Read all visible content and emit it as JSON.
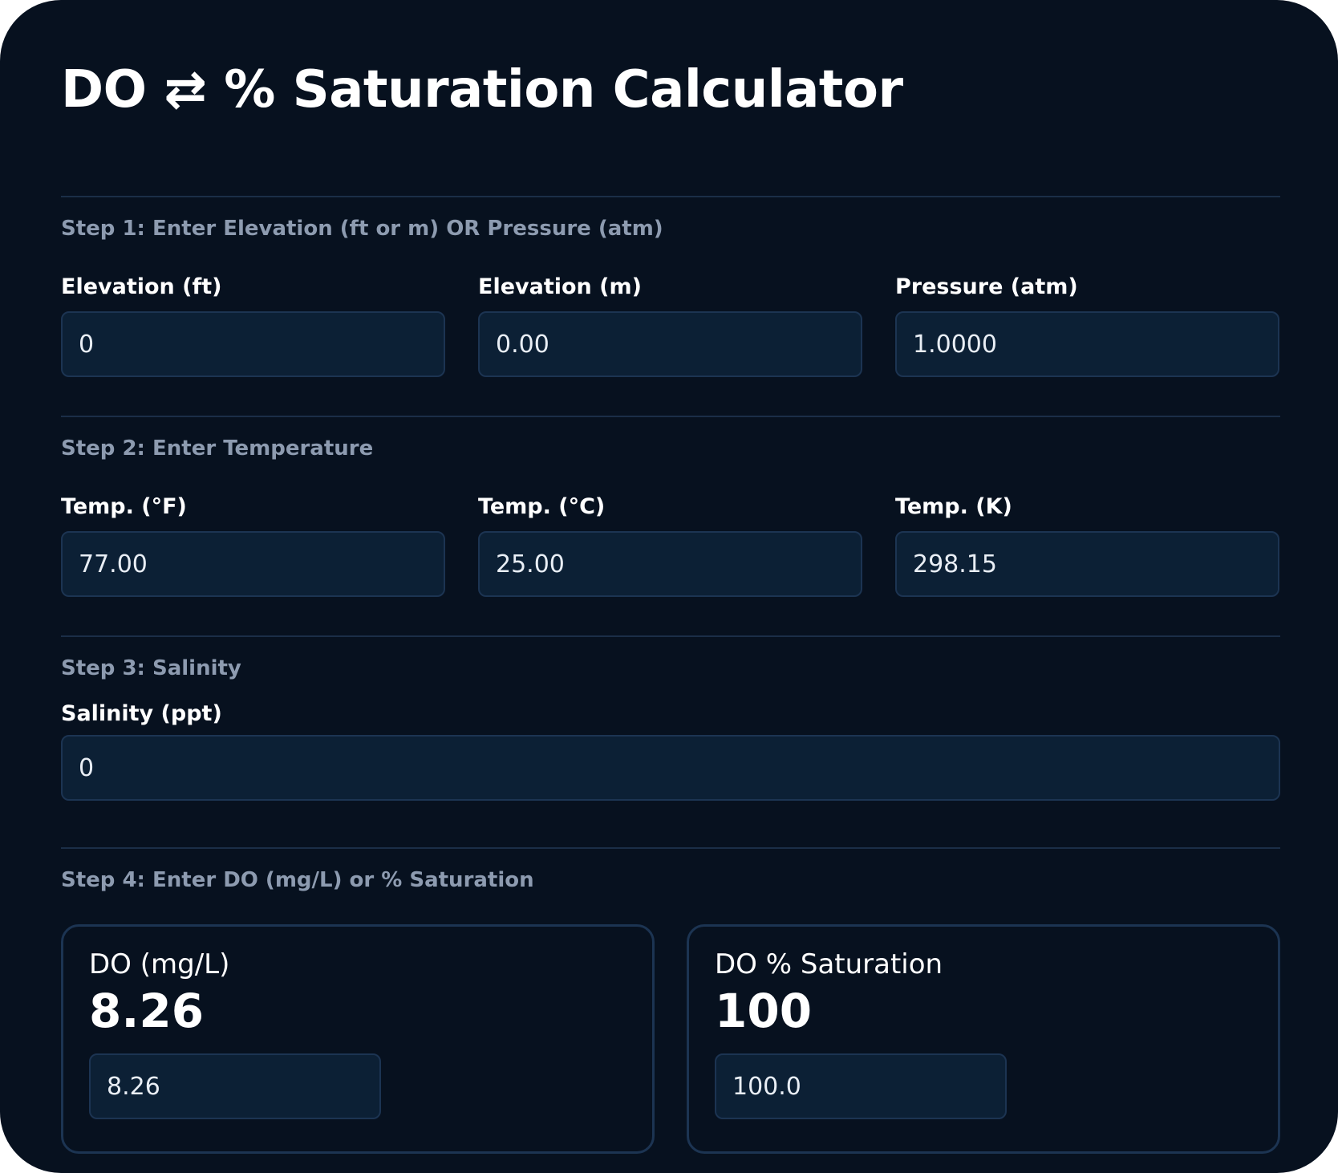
{
  "title": "DO ⇄ % Saturation Calculator",
  "step1": {
    "label": "Step 1: Enter Elevation (ft or m) OR Pressure (atm)",
    "fields": [
      {
        "label": "Elevation (ft)",
        "value": "0"
      },
      {
        "label": "Elevation (m)",
        "value": "0.00"
      },
      {
        "label": "Pressure (atm)",
        "value": "1.0000"
      }
    ]
  },
  "step2": {
    "label": "Step 2: Enter Temperature",
    "fields": [
      {
        "label": "Temp. (°F)",
        "value": "77.00"
      },
      {
        "label": "Temp. (°C)",
        "value": "25.00"
      },
      {
        "label": "Temp. (K)",
        "value": "298.15"
      }
    ]
  },
  "step3": {
    "label": "Step 3: Salinity",
    "fields": [
      {
        "label": "Salinity (ppt)",
        "value": "0"
      }
    ]
  },
  "step4": {
    "label": "Step 4: Enter DO (mg/L) or % Saturation",
    "results": [
      {
        "label": "DO (mg/L)",
        "display": "8.26",
        "value": "8.26"
      },
      {
        "label": "DO % Saturation",
        "display": "100",
        "value": "100.0"
      }
    ]
  },
  "colors": {
    "background": "#07111f",
    "input_background": "#0c2035",
    "border": "#1c3452",
    "step_label": "#8d9bb0"
  }
}
